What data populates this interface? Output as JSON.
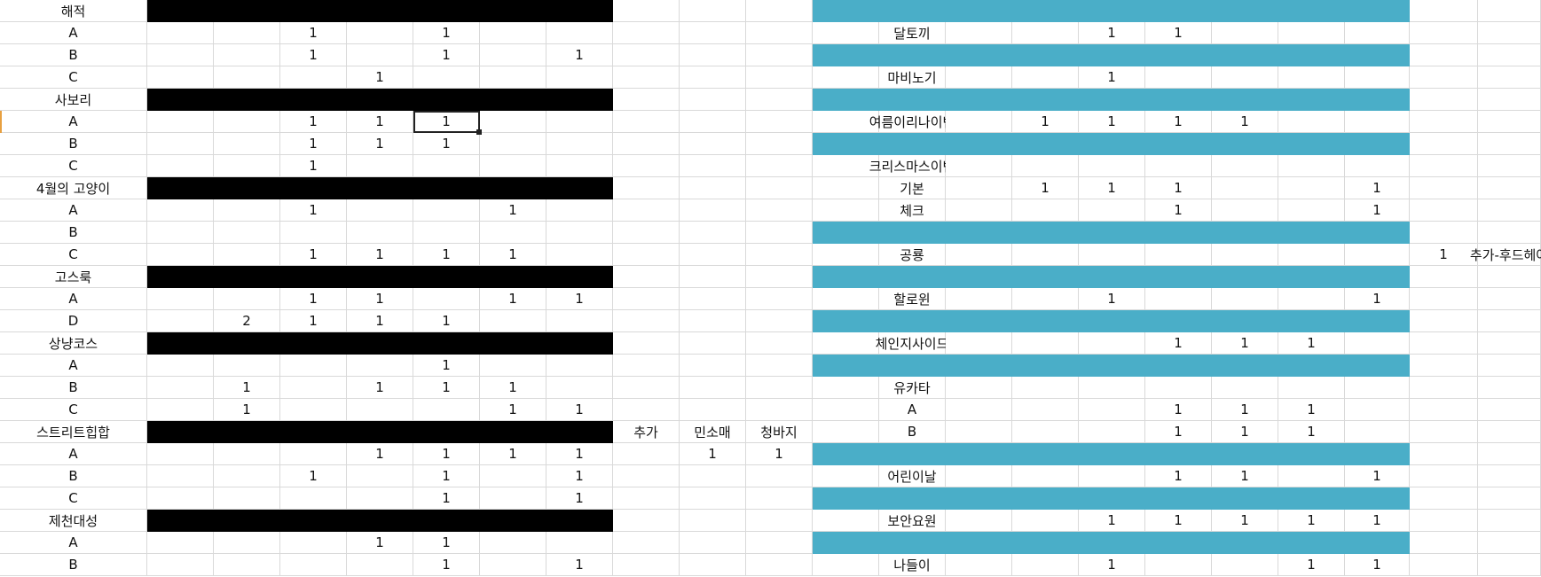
{
  "sheet": {
    "left_table": [
      {
        "label": "해적",
        "band": "black",
        "cells": {}
      },
      {
        "label": "A",
        "cells": {
          "3": "1",
          "5": "1"
        }
      },
      {
        "label": "B",
        "cells": {
          "3": "1",
          "5": "1",
          "7": "1"
        }
      },
      {
        "label": "C",
        "cells": {
          "4": "1"
        }
      },
      {
        "label": "사보리",
        "band": "black",
        "cells": {}
      },
      {
        "label": "A",
        "cells": {
          "3": "1",
          "4": "1",
          "5": "1"
        }
      },
      {
        "label": "B",
        "cells": {
          "3": "1",
          "4": "1",
          "5": "1"
        }
      },
      {
        "label": "C",
        "cells": {
          "3": "1"
        }
      },
      {
        "label": "4월의 고양이",
        "band": "black",
        "cells": {}
      },
      {
        "label": "A",
        "cells": {
          "3": "1",
          "6": "1"
        }
      },
      {
        "label": "B",
        "cells": {}
      },
      {
        "label": "C",
        "cells": {
          "3": "1",
          "4": "1",
          "5": "1",
          "6": "1"
        }
      },
      {
        "label": "고스룩",
        "band": "black",
        "cells": {}
      },
      {
        "label": "A",
        "cells": {
          "3": "1",
          "4": "1",
          "6": "1",
          "7": "1"
        }
      },
      {
        "label": "D",
        "cells": {
          "2": "2",
          "3": "1",
          "4": "1",
          "5": "1"
        }
      },
      {
        "label": "상냥코스",
        "band": "black",
        "cells": {}
      },
      {
        "label": "A",
        "cells": {
          "5": "1"
        }
      },
      {
        "label": "B",
        "cells": {
          "2": "1",
          "4": "1",
          "5": "1",
          "6": "1"
        }
      },
      {
        "label": "C",
        "cells": {
          "2": "1",
          "6": "1",
          "7": "1"
        }
      },
      {
        "label": "스트리트힙합",
        "band": "black",
        "cells": {
          "8": "추가",
          "9": "민소매",
          "10": "청바지"
        }
      },
      {
        "label": "A",
        "cells": {
          "4": "1",
          "5": "1",
          "6": "1",
          "7": "1",
          "9": "1",
          "10": "1"
        }
      },
      {
        "label": "B",
        "cells": {
          "3": "1",
          "5": "1",
          "7": "1"
        }
      },
      {
        "label": "C",
        "cells": {
          "5": "1",
          "7": "1"
        }
      },
      {
        "label": "제천대성",
        "band": "black",
        "cells": {}
      },
      {
        "label": "A",
        "cells": {
          "4": "1",
          "5": "1"
        }
      },
      {
        "label": "B",
        "cells": {
          "5": "1",
          "7": "1"
        }
      }
    ],
    "right_table": [
      {
        "label": "",
        "band": "teal",
        "cells": {}
      },
      {
        "label": "달토끼",
        "cells": {
          "15": "1",
          "16": "1"
        }
      },
      {
        "label": "",
        "band": "teal",
        "cells": {}
      },
      {
        "label": "마비노기",
        "cells": {
          "15": "1"
        }
      },
      {
        "label": "",
        "band": "teal",
        "cells": {}
      },
      {
        "label": "여름이리나이벤",
        "cells": {
          "14": "1",
          "15": "1",
          "16": "1",
          "17": "1"
        }
      },
      {
        "label": "",
        "band": "teal",
        "cells": {}
      },
      {
        "label": "크리스마스이벤",
        "cells": {}
      },
      {
        "label": "기본",
        "cells": {
          "14": "1",
          "15": "1",
          "16": "1",
          "19": "1"
        }
      },
      {
        "label": "체크",
        "cells": {
          "16": "1",
          "19": "1"
        }
      },
      {
        "label": "",
        "band": "teal",
        "cells": {}
      },
      {
        "label": "공룡",
        "cells": {
          "20": "1",
          "21": "추가-후드헤어"
        }
      },
      {
        "label": "",
        "band": "teal",
        "cells": {}
      },
      {
        "label": "할로윈",
        "cells": {
          "15": "1",
          "19": "1"
        }
      },
      {
        "label": "",
        "band": "teal",
        "cells": {}
      },
      {
        "label": "체인지사이드",
        "cells": {
          "16": "1",
          "17": "1",
          "18": "1"
        }
      },
      {
        "label": "",
        "band": "teal",
        "cells": {}
      },
      {
        "label": "유카타",
        "cells": {}
      },
      {
        "label": "A",
        "cells": {
          "16": "1",
          "17": "1",
          "18": "1"
        }
      },
      {
        "label": "B",
        "cells": {
          "16": "1",
          "17": "1",
          "18": "1"
        }
      },
      {
        "label": "",
        "band": "teal",
        "cells": {}
      },
      {
        "label": "어린이날",
        "cells": {
          "16": "1",
          "17": "1",
          "19": "1"
        }
      },
      {
        "label": "",
        "band": "teal",
        "cells": {}
      },
      {
        "label": "보안요원",
        "cells": {
          "15": "1",
          "16": "1",
          "17": "1",
          "18": "1",
          "19": "1"
        }
      },
      {
        "label": "",
        "band": "teal",
        "cells": {}
      },
      {
        "label": "나들이",
        "cells": {
          "15": "1",
          "18": "1",
          "19": "1"
        }
      }
    ]
  }
}
